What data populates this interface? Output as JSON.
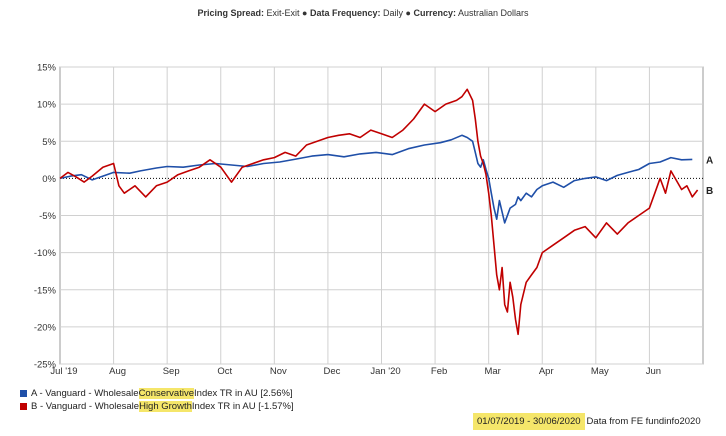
{
  "subtitle": {
    "spread_label": "Pricing Spread:",
    "spread_value": "Exit-Exit",
    "freq_label": "Data Frequency:",
    "freq_value": "Daily",
    "currency_label": "Currency:",
    "currency_value": "Australian Dollars",
    "sep": "●"
  },
  "legend": [
    {
      "prefix": "A - Vanguard - Wholesale ",
      "highlight": "Conservative",
      "suffix": " Index TR in AU [2.56%]",
      "color": "#1f4fa8"
    },
    {
      "prefix": "B - Vanguard - Wholesale ",
      "highlight": "High Growth",
      "suffix": " Index TR in AU [-1.57%]",
      "color": "#c00000"
    }
  ],
  "footer": {
    "period": "01/07/2019 - 30/06/2020",
    "source": "Data from FE fundinfo2020"
  },
  "colors": {
    "series_a": "#1f4fa8",
    "series_b": "#c00000",
    "grid": "#d0d0d0",
    "zero_line": "#000000"
  },
  "chart_data": {
    "type": "line",
    "xlabel": "",
    "ylabel": "",
    "ylim": [
      -25,
      15
    ],
    "yticks": [
      15,
      10,
      5,
      0,
      -5,
      -10,
      -15,
      -20,
      -25
    ],
    "ytick_labels": [
      "15%",
      "10%",
      "5%",
      "0%",
      "-5%",
      "-10%",
      "-15%",
      "-20%",
      "-25%"
    ],
    "x_unit": "months since 2019-07-01",
    "xlim": [
      0,
      12
    ],
    "xticks": [
      {
        "x": 0,
        "label": "Jul '19"
      },
      {
        "x": 1,
        "label": "Aug"
      },
      {
        "x": 2,
        "label": "Sep"
      },
      {
        "x": 3,
        "label": "Oct"
      },
      {
        "x": 4,
        "label": "Nov"
      },
      {
        "x": 5,
        "label": "Dec"
      },
      {
        "x": 6,
        "label": "Jan '20"
      },
      {
        "x": 7,
        "label": "Feb"
      },
      {
        "x": 8,
        "label": "Mar"
      },
      {
        "x": 9,
        "label": "Apr"
      },
      {
        "x": 10,
        "label": "May"
      },
      {
        "x": 11,
        "label": "Jun"
      }
    ],
    "grid": true,
    "legend": "bottom-left",
    "series": [
      {
        "name": "A",
        "end_label": "A",
        "x": [
          0,
          0.2,
          0.4,
          0.6,
          0.8,
          1.0,
          1.3,
          1.5,
          1.8,
          2.0,
          2.3,
          2.6,
          2.9,
          3.2,
          3.5,
          3.8,
          4.1,
          4.4,
          4.7,
          5.0,
          5.3,
          5.6,
          5.9,
          6.2,
          6.5,
          6.8,
          7.1,
          7.3,
          7.5,
          7.6,
          7.7,
          7.75,
          7.8,
          7.85,
          7.9,
          7.95,
          8.0,
          8.05,
          8.1,
          8.15,
          8.2,
          8.3,
          8.4,
          8.5,
          8.55,
          8.6,
          8.7,
          8.8,
          8.9,
          9.0,
          9.2,
          9.4,
          9.6,
          9.8,
          10.0,
          10.2,
          10.4,
          10.6,
          10.8,
          11.0,
          11.2,
          11.4,
          11.6,
          11.8
        ],
        "y": [
          0,
          0.3,
          0.5,
          -0.2,
          0.3,
          0.8,
          0.7,
          1.0,
          1.4,
          1.6,
          1.5,
          1.8,
          2.0,
          1.8,
          1.6,
          2.0,
          2.2,
          2.6,
          3.0,
          3.2,
          2.9,
          3.3,
          3.5,
          3.2,
          4.0,
          4.5,
          4.8,
          5.2,
          5.8,
          5.5,
          5.0,
          3.5,
          2.0,
          1.5,
          2.5,
          1.2,
          0.0,
          -2.0,
          -4.0,
          -5.5,
          -3.0,
          -6.0,
          -4.0,
          -3.5,
          -2.5,
          -3.0,
          -2.0,
          -2.5,
          -1.5,
          -1.0,
          -0.5,
          -1.2,
          -0.3,
          0.0,
          0.2,
          -0.3,
          0.4,
          0.8,
          1.2,
          2.0,
          2.2,
          2.8,
          2.5,
          2.56
        ]
      },
      {
        "name": "B",
        "end_label": "B",
        "x": [
          0,
          0.15,
          0.3,
          0.45,
          0.6,
          0.8,
          1.0,
          1.1,
          1.2,
          1.4,
          1.6,
          1.8,
          2.0,
          2.2,
          2.4,
          2.6,
          2.8,
          3.0,
          3.2,
          3.4,
          3.6,
          3.8,
          4.0,
          4.2,
          4.4,
          4.6,
          4.8,
          5.0,
          5.2,
          5.4,
          5.6,
          5.8,
          6.0,
          6.2,
          6.4,
          6.6,
          6.8,
          7.0,
          7.2,
          7.4,
          7.5,
          7.6,
          7.7,
          7.75,
          7.8,
          7.85,
          7.9,
          7.95,
          8.0,
          8.05,
          8.1,
          8.15,
          8.2,
          8.25,
          8.3,
          8.35,
          8.4,
          8.45,
          8.5,
          8.55,
          8.6,
          8.7,
          8.8,
          8.9,
          9.0,
          9.2,
          9.4,
          9.6,
          9.8,
          10.0,
          10.2,
          10.4,
          10.6,
          10.8,
          11.0,
          11.1,
          11.2,
          11.3,
          11.4,
          11.6,
          11.7,
          11.8,
          11.9
        ],
        "y": [
          0,
          0.8,
          0.2,
          -0.5,
          0.3,
          1.5,
          2.0,
          -1.0,
          -2.0,
          -1.0,
          -2.5,
          -1.0,
          -0.5,
          0.5,
          1.0,
          1.5,
          2.5,
          1.5,
          -0.5,
          1.5,
          2.0,
          2.5,
          2.8,
          3.5,
          3.0,
          4.5,
          5.0,
          5.5,
          5.8,
          6.0,
          5.5,
          6.5,
          6.0,
          5.5,
          6.5,
          8.0,
          10.0,
          9.0,
          10.0,
          10.5,
          11.0,
          12.0,
          10.5,
          8.0,
          5.0,
          3.0,
          2.0,
          0.5,
          -2.0,
          -5.0,
          -9.0,
          -13.0,
          -15.0,
          -12.0,
          -17.0,
          -18.0,
          -14.0,
          -16.0,
          -19.0,
          -21.0,
          -17.0,
          -14.0,
          -13.0,
          -12.0,
          -10.0,
          -9.0,
          -8.0,
          -7.0,
          -6.5,
          -8.0,
          -6.0,
          -7.5,
          -6.0,
          -5.0,
          -4.0,
          -2.0,
          0.0,
          -2.0,
          1.0,
          -1.5,
          -1.0,
          -2.5,
          -1.57
        ]
      }
    ]
  }
}
